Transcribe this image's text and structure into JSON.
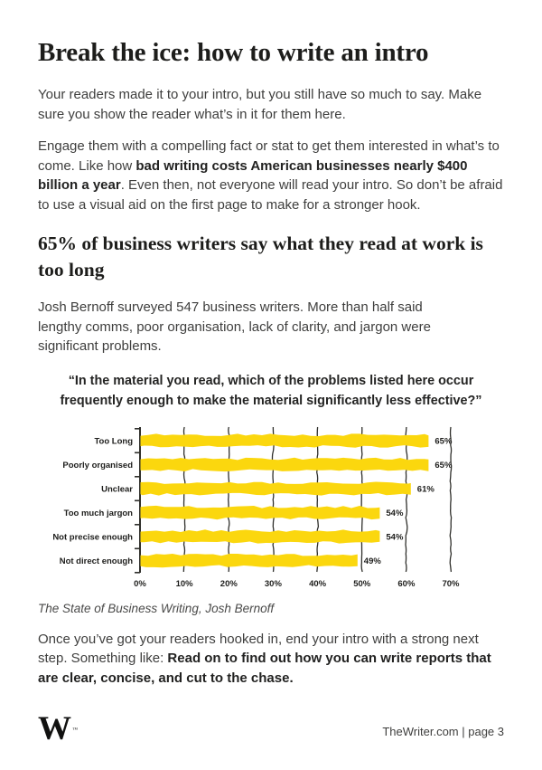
{
  "page": {
    "title": "Break the ice: how to write an intro",
    "subheading": "65% of business writers say what they read at work is too long",
    "paragraphs": [
      {
        "segments": [
          {
            "text": "Your readers made it to your intro, but you still have so much to say. Make sure you show the reader what’s in it for them here.",
            "bold": false
          }
        ]
      },
      {
        "segments": [
          {
            "text": "Engage them with a compelling fact or stat to get them interested in what’s to come. Like how ",
            "bold": false
          },
          {
            "text": "bad writing costs American businesses nearly $400 billion a year",
            "bold": true
          },
          {
            "text": ". Even then, not everyone will read your intro. So don’t be afraid to use a visual aid on the first page to make for a stronger hook.",
            "bold": false
          }
        ]
      },
      {
        "segments": [
          {
            "text": "Josh Bernoff surveyed 547 business writers. More than half said lengthy comms, poor organisation, lack of clarity, and jargon were significant problems.",
            "bold": false
          }
        ]
      },
      {
        "segments": [
          {
            "text": "Once you’ve got your readers hooked in, end your intro with a strong next step. Something like: ",
            "bold": false
          },
          {
            "text": "Read on to find out how you can write reports that are clear, concise, and cut to the chase.",
            "bold": true
          }
        ]
      }
    ]
  },
  "chart_data": {
    "type": "bar",
    "orientation": "horizontal",
    "style": "hand-drawn",
    "title": "“In the material you read, which of the problems listed here occur frequently enough to make the material significantly less effective?”",
    "categories": [
      "Too Long",
      "Poorly organised",
      "Unclear",
      "Too much jargon",
      "Not precise enough",
      "Not direct enough"
    ],
    "values": [
      65,
      65,
      61,
      54,
      54,
      49
    ],
    "value_labels": [
      "65%",
      "65%",
      "61%",
      "54%",
      "54%",
      "49%"
    ],
    "x_ticks": [
      "0%",
      "10%",
      "20%",
      "30%",
      "40%",
      "50%",
      "60%",
      "70%"
    ],
    "xlim": [
      0,
      70
    ],
    "grid": true,
    "legend": "none",
    "bar_color": "#FBD70E",
    "gridline_color": "#30302C",
    "source": "The State of Business Writing, Josh Bernoff"
  },
  "footer": {
    "logo_letter": "W",
    "trademark": "™",
    "page_info": "TheWriter.com | page 3"
  }
}
